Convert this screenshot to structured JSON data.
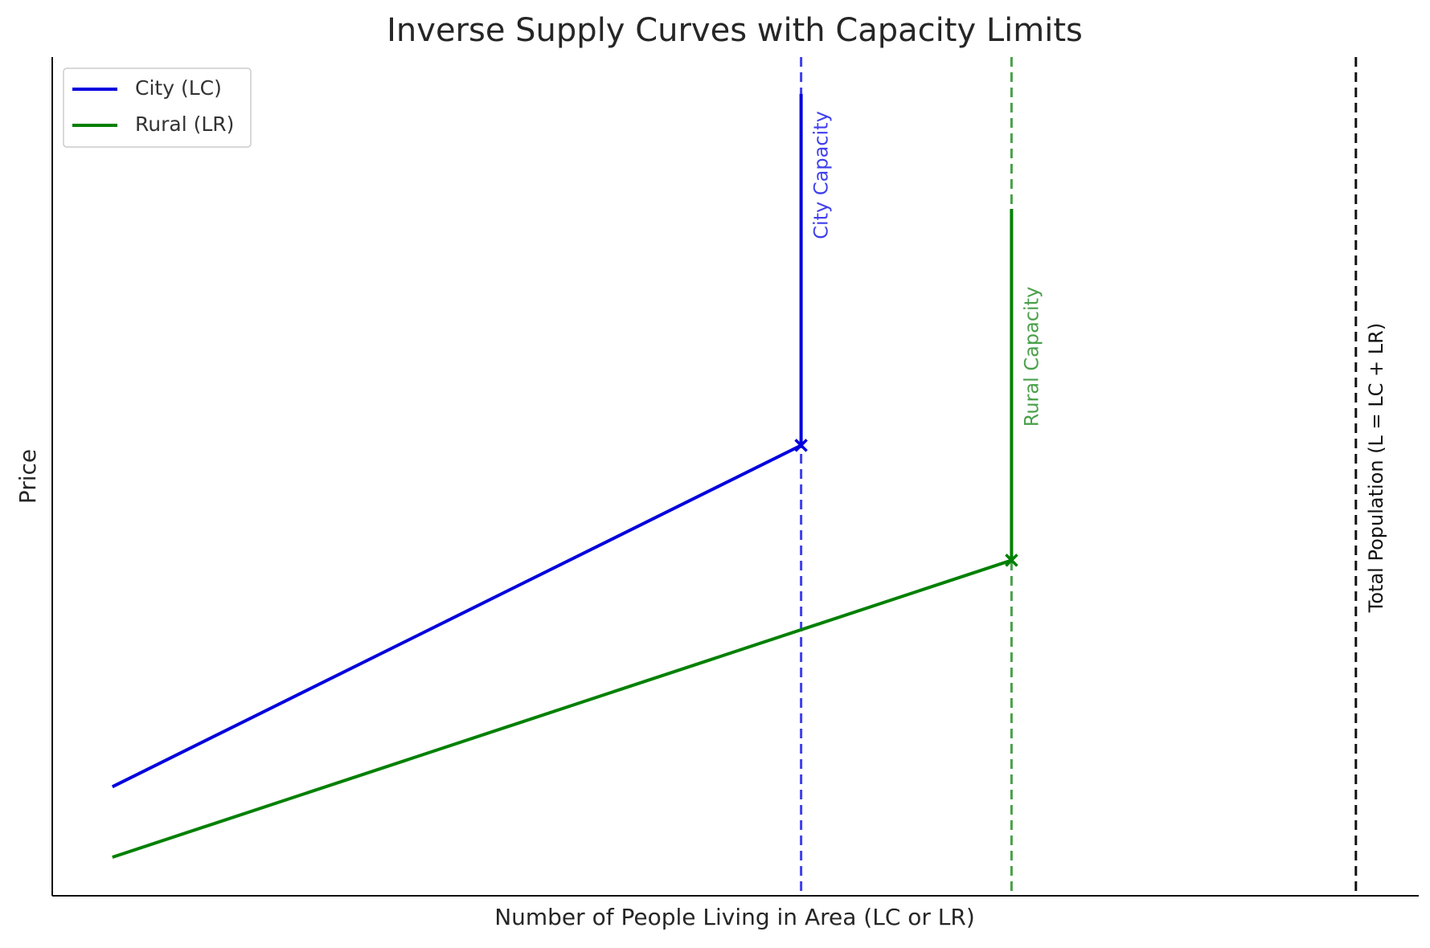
{
  "chart_data": {
    "type": "line",
    "title": "Inverse Supply Curves with Capacity Limits",
    "xlabel": "Number of People Living in Area (LC or LR)",
    "ylabel": "Price",
    "xlim": [
      0,
      100
    ],
    "ylim": [
      0,
      100
    ],
    "grid": false,
    "legend": "upper left",
    "series": [
      {
        "name": "City (LC)",
        "color": "#0000dd",
        "x": [
          4.4,
          54.8,
          54.8
        ],
        "values": [
          13,
          53.7,
          95.6
        ]
      },
      {
        "name": "Rural (LR)",
        "color": "#008000",
        "x": [
          4.4,
          70.2,
          70.2
        ],
        "values": [
          4.6,
          40,
          81.9
        ]
      }
    ],
    "vlines": [
      {
        "x": 54.8,
        "color": "#4040ee",
        "label": "City Capacity"
      },
      {
        "x": 70.2,
        "color": "#4aa04a",
        "label": "Rural Capacity"
      },
      {
        "x": 95.4,
        "color": "#111111",
        "label": "Total Population (L = LC + LR)"
      }
    ]
  }
}
